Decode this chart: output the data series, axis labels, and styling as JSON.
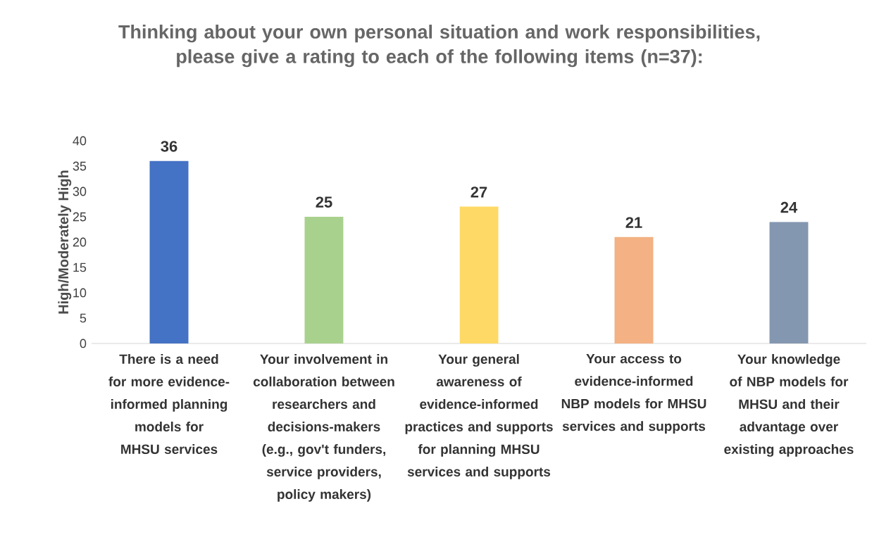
{
  "chart_data": {
    "type": "bar",
    "title": "Thinking about your own personal situation and work responsibilities, please give a rating to each of the following items (n=37):",
    "ylabel": "High/Moderately High",
    "categories": [
      "There is a need for more evidence-informed planning models for MHSU services",
      "Your involvement in collaboration between researchers and decisions-makers (e.g., gov't funders, service providers, policy makers)",
      "Your general awareness of evidence-informed practices and supports for planning MHSU services and supports",
      "Your access to evidence-informed NBP models for MHSU services and supports",
      "Your knowledge of NBP models for MHSU and their advantage over existing approaches"
    ],
    "values": [
      36,
      25,
      27,
      21,
      24
    ],
    "colors": [
      "#4472c4",
      "#a9d18e",
      "#ffd966",
      "#f4b183",
      "#8497b0"
    ],
    "ylim": [
      0,
      40
    ],
    "yticks": [
      0,
      5,
      10,
      15,
      20,
      25,
      30,
      35,
      40
    ],
    "data_labels": true,
    "grid": false
  }
}
